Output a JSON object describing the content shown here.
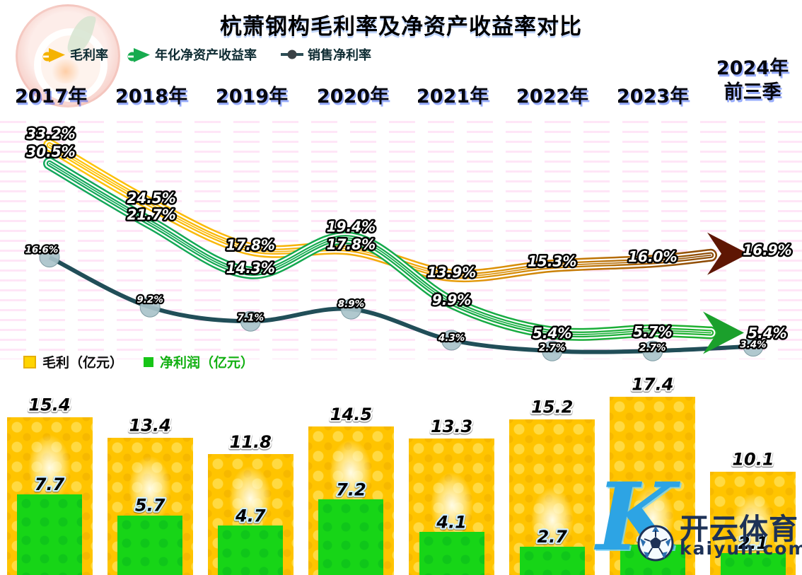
{
  "title": "杭萧钢构毛利率及净资产收益率对比",
  "years": [
    "2017年",
    "2018年",
    "2019年",
    "2020年",
    "2021年",
    "2022年",
    "2023年"
  ],
  "year_last": {
    "line1": "2024年",
    "line2": "前三季"
  },
  "bar_legend": [
    {
      "label": "毛利（亿元）",
      "color": "#ffd400",
      "text_color": "#0d0d0d"
    },
    {
      "label": "净利润（亿元）",
      "color": "#17c517",
      "text_color": "#12b012"
    }
  ],
  "watermark": {
    "k": "K",
    "brand": "开云体育",
    "domain": "kaiyun.com"
  },
  "colors": {
    "gross_margin_line": "#f2a80a",
    "roe_line": "#17ab4f",
    "net_margin_line": "#214e58",
    "net_margin_marker": "#a9c3ca",
    "gross_arrow": "#5e1603",
    "roe_arrow": "#1ba02c"
  },
  "chart_data": [
    {
      "type": "line",
      "title": "杭萧钢构毛利率及净资产收益率对比",
      "categories": [
        "2017年",
        "2018年",
        "2019年",
        "2020年",
        "2021年",
        "2022年",
        "2023年",
        "2024年前三季"
      ],
      "unit": "%",
      "legend_position": "top",
      "grid": false,
      "series": [
        {
          "name": "毛利率",
          "color": "#f2a80a",
          "values": [
            33.2,
            24.5,
            17.8,
            17.8,
            13.9,
            15.3,
            16.0,
            16.9
          ]
        },
        {
          "name": "年化净资产收益率",
          "color": "#17ab4f",
          "values": [
            30.5,
            21.7,
            14.3,
            19.4,
            9.9,
            5.4,
            5.7,
            5.4
          ]
        },
        {
          "name": "销售净利率",
          "color": "#214e58",
          "values": [
            16.6,
            9.2,
            7.1,
            8.9,
            4.3,
            2.7,
            2.7,
            3.4
          ]
        }
      ]
    },
    {
      "type": "bar",
      "categories": [
        "2017年",
        "2018年",
        "2019年",
        "2020年",
        "2021年",
        "2022年",
        "2023年",
        "2024年前三季"
      ],
      "unit": "亿元",
      "legend_position": "top",
      "grid": false,
      "series": [
        {
          "name": "毛利（亿元）",
          "color": "#ffc400",
          "values": [
            15.4,
            13.4,
            11.8,
            14.5,
            13.3,
            15.2,
            17.4,
            10.1
          ]
        },
        {
          "name": "净利润（亿元）",
          "color": "#17d517",
          "values": [
            7.7,
            5.7,
            4.7,
            7.2,
            4.1,
            2.7,
            2.9,
            2.1
          ]
        }
      ]
    }
  ]
}
